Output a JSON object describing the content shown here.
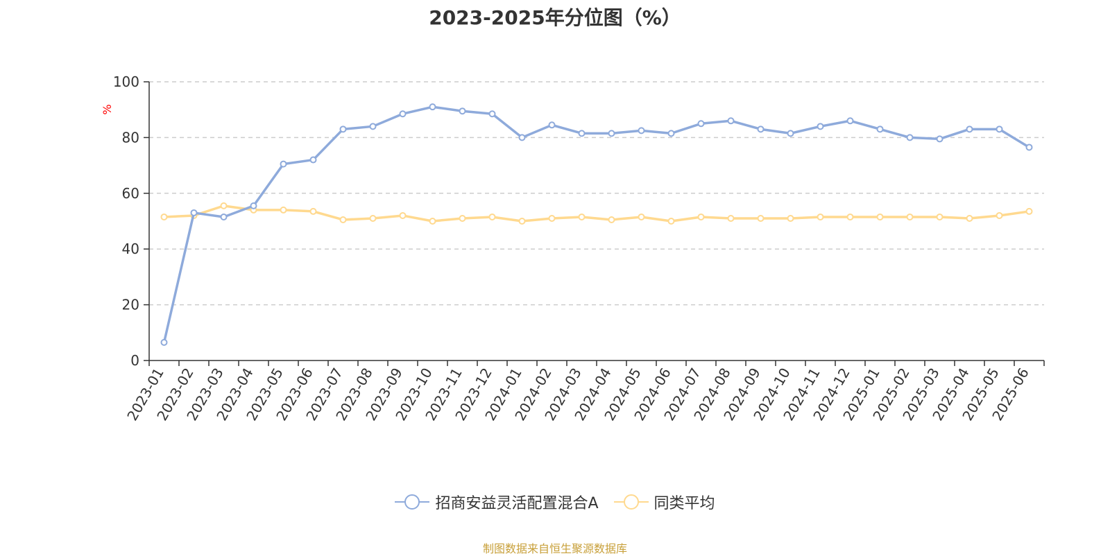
{
  "chart_data": {
    "type": "line",
    "title": "2023-2025年分位图（%）",
    "ylabel": "%",
    "xlabel": "",
    "ylim": [
      0,
      100
    ],
    "yticks": [
      0,
      20,
      40,
      60,
      80,
      100
    ],
    "grid": true,
    "legend_position": "bottom",
    "categories": [
      "2023-01",
      "2023-02",
      "2023-03",
      "2023-04",
      "2023-05",
      "2023-06",
      "2023-07",
      "2023-08",
      "2023-09",
      "2023-10",
      "2023-11",
      "2023-12",
      "2024-01",
      "2024-02",
      "2024-03",
      "2024-04",
      "2024-05",
      "2024-06",
      "2024-07",
      "2024-08",
      "2024-09",
      "2024-10",
      "2024-11",
      "2024-12",
      "2025-01",
      "2025-02",
      "2025-03",
      "2025-04",
      "2025-05",
      "2025-06"
    ],
    "series": [
      {
        "name": "招商安益灵活配置混合A",
        "color": "#8eaadb",
        "values": [
          6.5,
          53,
          51.5,
          55.5,
          70.5,
          72,
          83,
          84,
          88.5,
          91,
          89.5,
          88.5,
          80,
          84.5,
          81.5,
          81.5,
          82.5,
          81.5,
          85,
          86,
          83,
          81.5,
          84,
          86,
          83,
          80,
          79.5,
          83,
          83,
          76.5
        ]
      },
      {
        "name": "同类平均",
        "color": "#ffd98f",
        "values": [
          51.5,
          52,
          55.5,
          54,
          54,
          53.5,
          50.5,
          51,
          52,
          50,
          51,
          51.5,
          50,
          51,
          51.5,
          50.5,
          51.5,
          50,
          51.5,
          51,
          51,
          51,
          51.5,
          51.5,
          51.5,
          51.5,
          51.5,
          51,
          52,
          53.5
        ]
      }
    ]
  },
  "source_text": "制图数据来自恒生聚源数据库"
}
